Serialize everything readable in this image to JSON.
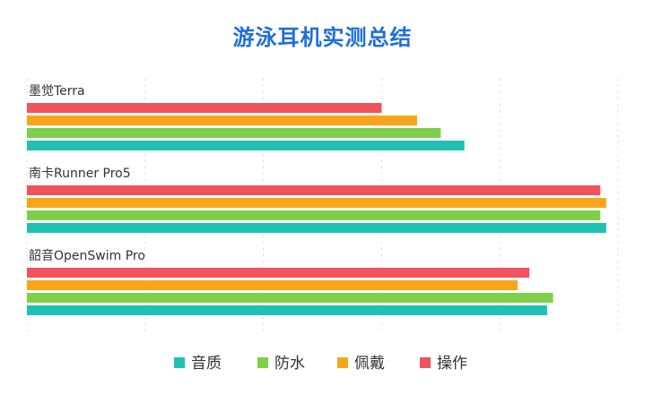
{
  "chart_data": {
    "type": "bar",
    "orientation": "horizontal",
    "title": "游泳耳机实测总结",
    "categories": [
      "墨觉Terra",
      "南卡Runner Pro5",
      "韶音OpenSwim Pro"
    ],
    "series": [
      {
        "name": "操作",
        "color": "#f0525e",
        "values": [
          6.0,
          9.7,
          8.5
        ]
      },
      {
        "name": "佩戴",
        "color": "#f8a51c",
        "values": [
          6.6,
          9.8,
          8.3
        ]
      },
      {
        "name": "防水",
        "color": "#7fcf4a",
        "values": [
          7.0,
          9.7,
          8.9
        ]
      },
      {
        "name": "音质",
        "color": "#1fc1b3",
        "values": [
          7.4,
          9.8,
          8.8
        ]
      }
    ],
    "legend_order": [
      "音质",
      "防水",
      "佩戴",
      "操作"
    ],
    "xlim": [
      0,
      10
    ],
    "grid": true,
    "legend_position": "bottom"
  }
}
